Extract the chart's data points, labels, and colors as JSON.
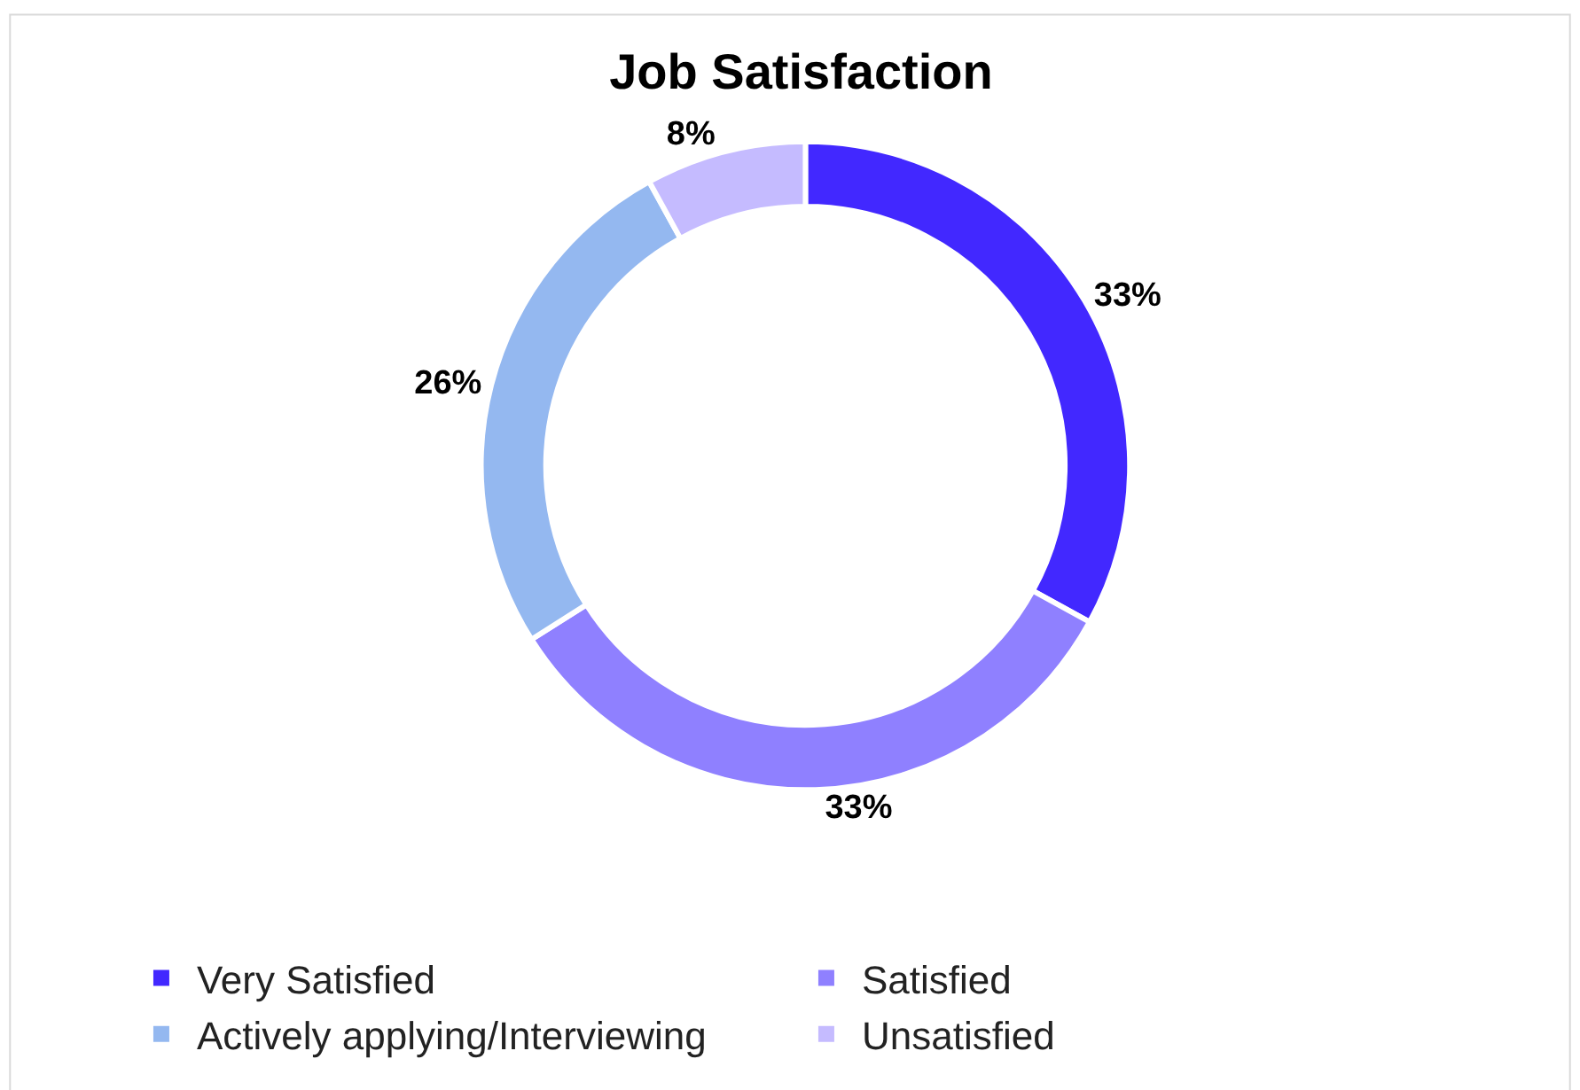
{
  "chart_data": {
    "type": "donut",
    "title": "Job Satisfaction",
    "categories": [
      "Very Satisfied",
      "Satisfied",
      "Actively applying/Interviewing",
      "Unsatisfied"
    ],
    "values": [
      33,
      33,
      26,
      8
    ],
    "colors": [
      "#4228ff",
      "#8f80ff",
      "#94b8f0",
      "#c5bbff"
    ],
    "value_labels": [
      "33%",
      "33%",
      "26%",
      "8%"
    ],
    "legend": "bottom"
  }
}
